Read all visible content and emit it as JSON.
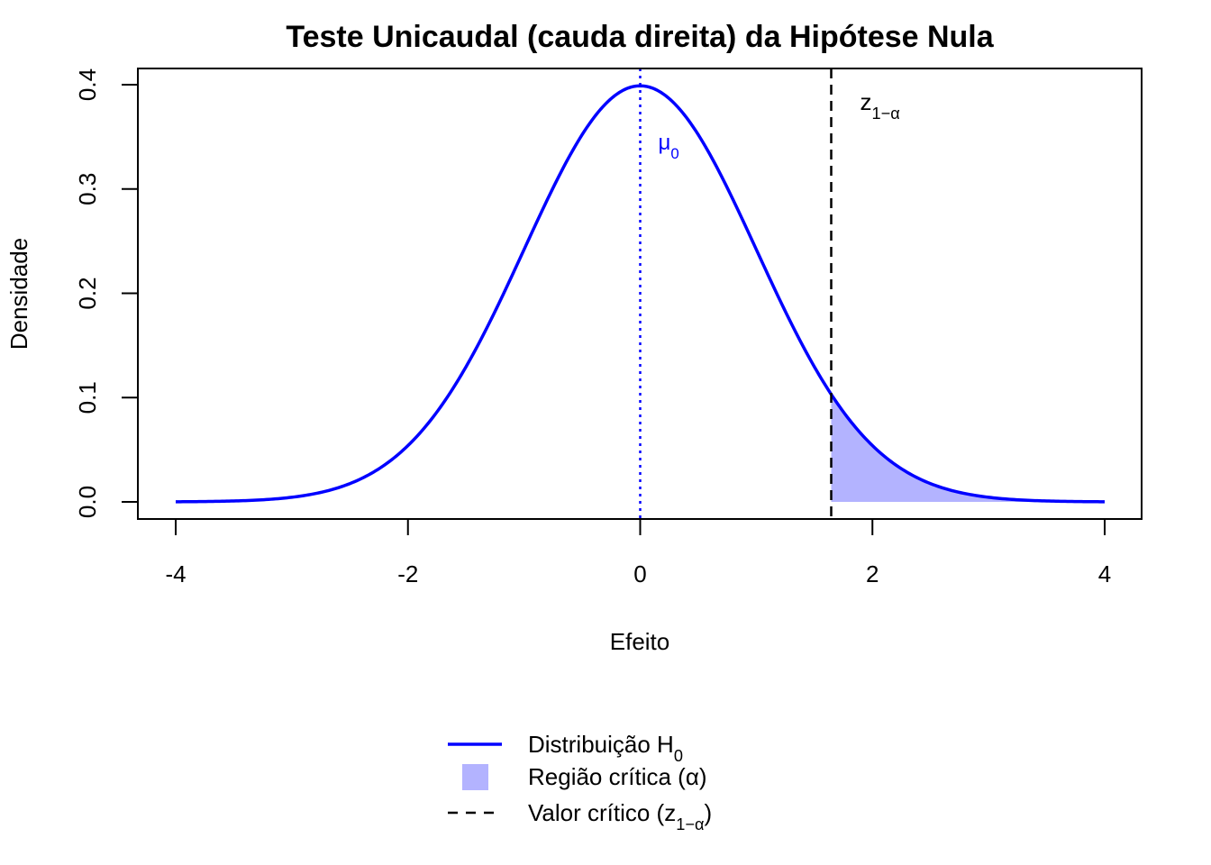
{
  "chart_data": {
    "type": "area",
    "title": "Teste Unicaudal (cauda direita) da Hipótese Nula",
    "xlabel": "Efeito",
    "ylabel": "Densidade",
    "xlim": [
      -4,
      4
    ],
    "ylim": [
      0,
      0.4
    ],
    "x_ticks": [
      "-4",
      "-2",
      "0",
      "2",
      "4"
    ],
    "y_ticks": [
      "0.0",
      "0.1",
      "0.2",
      "0.3",
      "0.4"
    ],
    "grid": false,
    "series": [
      {
        "name": "Distribuição H0",
        "distribution": "normal",
        "mean": 0,
        "sd": 1,
        "x_range": [
          -4,
          4
        ],
        "color": "#0000FF"
      }
    ],
    "critical_region": {
      "label": "Região crítica (α)",
      "from": 1.645,
      "to": 4,
      "color": "#B3B3FF"
    },
    "reference_lines": {
      "mean": {
        "x": 0,
        "style": "dotted",
        "color": "#0000FF",
        "annotation": "μ",
        "annotation_sub": "0"
      },
      "critical": {
        "x": 1.645,
        "style": "dashed",
        "color": "#000000",
        "annotation": "z",
        "annotation_sub": "1−α"
      }
    },
    "legend": {
      "position": "bottom",
      "entries": [
        {
          "text": "Distribuição H",
          "sub": "0",
          "suffix": "",
          "symbol": "line",
          "color": "#0000FF"
        },
        {
          "text": "Região crítica (α)",
          "sub": "",
          "suffix": "",
          "symbol": "box",
          "color": "#B3B3FF"
        },
        {
          "text": "Valor crítico (z",
          "sub": "1−α",
          "suffix": ")",
          "symbol": "dashed",
          "color": "#000000"
        }
      ]
    }
  }
}
